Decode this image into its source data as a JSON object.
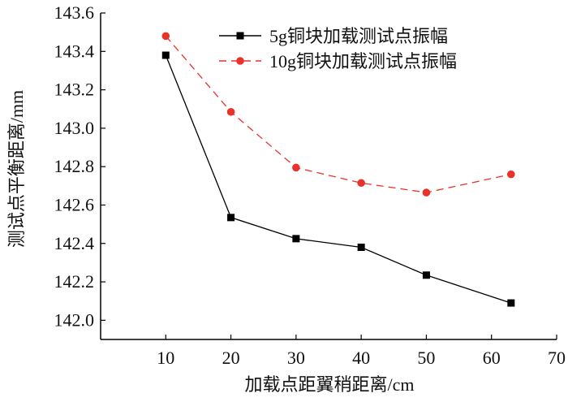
{
  "chart_data": {
    "type": "line",
    "title": "",
    "xlabel": "加载点距翼稍距离/cm",
    "ylabel": "测试点平衡距离/mm",
    "xlim": [
      0,
      70
    ],
    "ylim": [
      141.9,
      143.6
    ],
    "xticks": [
      10,
      20,
      30,
      40,
      50,
      60,
      70
    ],
    "yticks": [
      142.0,
      142.2,
      142.4,
      142.6,
      142.8,
      143.0,
      143.2,
      143.4,
      143.6
    ],
    "ytick_labels": [
      "142.0",
      "142.2",
      "142.4",
      "142.6",
      "142.8",
      "143.0",
      "143.2",
      "143.4",
      "143.6"
    ],
    "legend_position": "top-right",
    "grid": false,
    "series": [
      {
        "name": "5g铜块加载测试点振幅",
        "color": "#000000",
        "marker": "square",
        "line_style": "solid",
        "x": [
          10,
          20,
          30,
          40,
          50,
          63
        ],
        "y": [
          143.38,
          142.535,
          142.425,
          142.38,
          142.235,
          142.09
        ]
      },
      {
        "name": "10g铜块加载测试点振幅",
        "color": "#e8322a",
        "marker": "circle",
        "line_style": "dashed",
        "x": [
          10,
          20,
          30,
          40,
          50,
          63
        ],
        "y": [
          143.48,
          143.085,
          142.795,
          142.715,
          142.665,
          142.76
        ]
      }
    ]
  }
}
